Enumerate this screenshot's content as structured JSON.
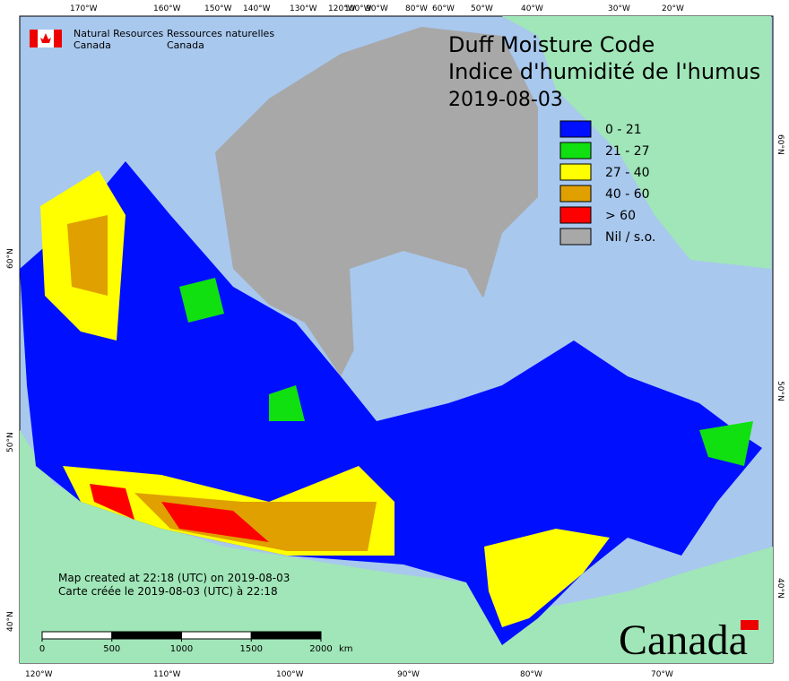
{
  "header": {
    "agency_en": [
      "Natural Resources",
      "Canada"
    ],
    "agency_fr": [
      "Ressources naturelles",
      "Canada"
    ]
  },
  "title": [
    "Duff Moisture Code",
    "Indice d'humidité de l'humus",
    "2019-08-03"
  ],
  "legend": [
    {
      "label": "0 - 21",
      "color": "#0010ff"
    },
    {
      "label": "21 - 27",
      "color": "#10e010"
    },
    {
      "label": "27 - 40",
      "color": "#ffff00"
    },
    {
      "label": "40 - 60",
      "color": "#e0a000"
    },
    {
      "label": "> 60",
      "color": "#ff0000"
    },
    {
      "label": "Nil / s.o.",
      "color": "#a8a8a8"
    }
  ],
  "graticule": {
    "top": [
      "170°W",
      "160°W",
      "150°W",
      "140°W",
      "130°W",
      "120°W",
      "100°W",
      "90°W",
      "80°W",
      "60°W",
      "50°W",
      "40°W",
      "30°W",
      "20°W"
    ],
    "bottom": [
      "120°W",
      "110°W",
      "100°W",
      "90°W",
      "80°W",
      "70°W"
    ],
    "left": [
      "60°N",
      "50°N",
      "40°N"
    ],
    "right": [
      "60°N",
      "50°N",
      "40°N"
    ]
  },
  "notes": [
    "Map created at 22:18 (UTC) on 2019-08-03",
    "Carte créée le 2019-08-03 (UTC) à 22:18"
  ],
  "scale": {
    "ticks": [
      0,
      500,
      1000,
      1500,
      2000
    ],
    "unit": "km"
  },
  "wordmark": "Canada"
}
